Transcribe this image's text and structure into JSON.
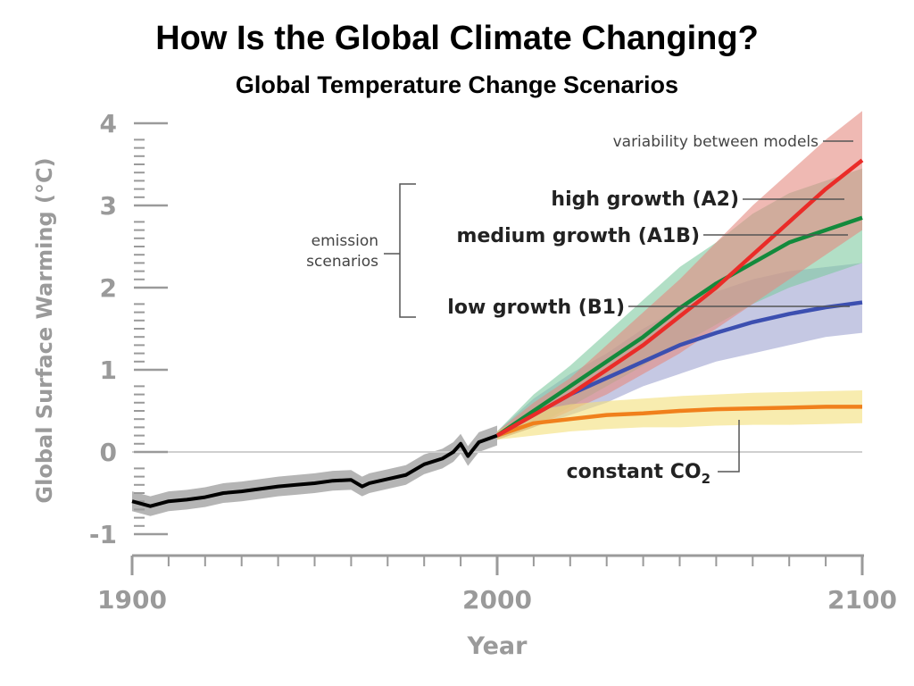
{
  "title": "How Is the Global Climate Changing?",
  "subtitle": "Global Temperature Change Scenarios",
  "chart_data": {
    "type": "line",
    "ylabel": "Global Surface Warming (°C)",
    "xlabel": "Year",
    "xlim": [
      1900,
      2100
    ],
    "ylim": [
      -1,
      4
    ],
    "x_ticks": [
      "1900",
      "2000",
      "2100"
    ],
    "y_ticks": [
      "-1",
      "0",
      "1",
      "2",
      "3",
      "4"
    ],
    "grid": false,
    "colors": {
      "historical": "#000000",
      "historical_band": "#a8a8a8",
      "A2": "#ea2c28",
      "A2_band": "#e48a80",
      "A1B": "#138a3c",
      "A1B_band": "#7fcaa0",
      "B1": "#3c4fb0",
      "B1_band": "#9ea3d0",
      "constant_co2": "#f0801c",
      "constant_co2_band": "#f3e07a",
      "axis_gray": "#9a9a9a"
    },
    "historical": {
      "x": [
        1900,
        1905,
        1910,
        1915,
        1920,
        1925,
        1930,
        1935,
        1940,
        1945,
        1950,
        1955,
        1960,
        1963,
        1965,
        1970,
        1975,
        1980,
        1985,
        1988,
        1990,
        1992,
        1995,
        2000
      ],
      "y": [
        -0.6,
        -0.66,
        -0.6,
        -0.58,
        -0.55,
        -0.5,
        -0.48,
        -0.45,
        -0.42,
        -0.4,
        -0.38,
        -0.35,
        -0.34,
        -0.42,
        -0.38,
        -0.33,
        -0.28,
        -0.15,
        -0.08,
        0.0,
        0.1,
        -0.05,
        0.12,
        0.2
      ]
    },
    "series": [
      {
        "name": "high growth (A2)",
        "x": [
          2000,
          2010,
          2020,
          2030,
          2040,
          2050,
          2060,
          2070,
          2080,
          2090,
          2100
        ],
        "y": [
          0.2,
          0.45,
          0.7,
          1.0,
          1.3,
          1.65,
          2.0,
          2.4,
          2.8,
          3.2,
          3.55
        ],
        "band_low": [
          0.15,
          0.3,
          0.5,
          0.7,
          0.95,
          1.2,
          1.5,
          1.8,
          2.1,
          2.4,
          2.7
        ],
        "band_high": [
          0.25,
          0.6,
          0.9,
          1.3,
          1.7,
          2.1,
          2.55,
          3.0,
          3.4,
          3.8,
          4.15
        ]
      },
      {
        "name": "medium growth (A1B)",
        "x": [
          2000,
          2010,
          2020,
          2030,
          2040,
          2050,
          2060,
          2070,
          2080,
          2090,
          2100
        ],
        "y": [
          0.2,
          0.5,
          0.8,
          1.1,
          1.4,
          1.75,
          2.05,
          2.3,
          2.55,
          2.7,
          2.85
        ],
        "band_low": [
          0.15,
          0.3,
          0.55,
          0.8,
          1.05,
          1.3,
          1.55,
          1.8,
          2.0,
          2.15,
          2.3
        ],
        "band_high": [
          0.25,
          0.7,
          1.05,
          1.45,
          1.85,
          2.25,
          2.55,
          2.9,
          3.15,
          3.3,
          3.45
        ]
      },
      {
        "name": "low growth (B1)",
        "x": [
          2000,
          2010,
          2020,
          2030,
          2040,
          2050,
          2060,
          2070,
          2080,
          2090,
          2100
        ],
        "y": [
          0.2,
          0.45,
          0.7,
          0.9,
          1.1,
          1.3,
          1.45,
          1.58,
          1.68,
          1.76,
          1.82
        ],
        "band_low": [
          0.15,
          0.3,
          0.45,
          0.6,
          0.8,
          0.95,
          1.1,
          1.2,
          1.3,
          1.4,
          1.45
        ],
        "band_high": [
          0.25,
          0.65,
          0.95,
          1.2,
          1.5,
          1.75,
          1.95,
          2.1,
          2.2,
          2.25,
          2.3
        ]
      },
      {
        "name": "constant CO2",
        "x": [
          2000,
          2010,
          2020,
          2030,
          2040,
          2050,
          2060,
          2070,
          2080,
          2090,
          2100
        ],
        "y": [
          0.2,
          0.35,
          0.4,
          0.45,
          0.47,
          0.5,
          0.52,
          0.53,
          0.54,
          0.55,
          0.55
        ],
        "band_low": [
          0.15,
          0.2,
          0.25,
          0.28,
          0.3,
          0.3,
          0.32,
          0.33,
          0.33,
          0.34,
          0.35
        ],
        "band_high": [
          0.25,
          0.5,
          0.58,
          0.62,
          0.65,
          0.68,
          0.7,
          0.72,
          0.73,
          0.74,
          0.75
        ]
      }
    ],
    "annotations": {
      "variability": "variability between models",
      "emission_line1": "emission",
      "emission_line2": "scenarios",
      "a2": "high growth (A2)",
      "a1b": "medium growth (A1B)",
      "b1": "low growth (B1)",
      "constant_prefix": "constant CO",
      "constant_sub": "2"
    }
  }
}
